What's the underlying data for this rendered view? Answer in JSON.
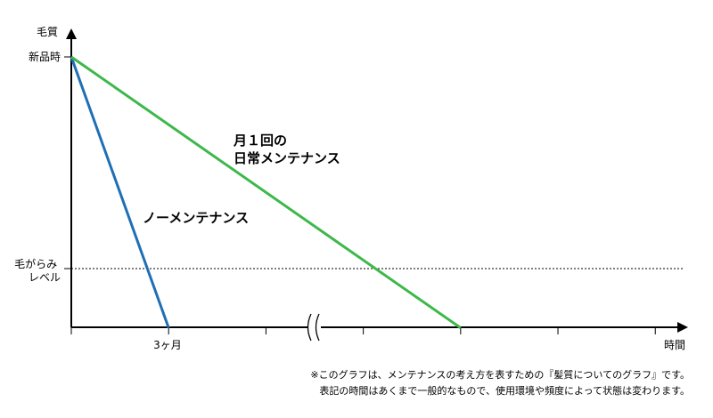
{
  "chart_data": {
    "type": "line",
    "title": "",
    "ylabel": "毛質",
    "xlabel": "時間",
    "y_ticks": [
      {
        "value": 100,
        "label": "新品時"
      },
      {
        "value": 0,
        "label": "毛がらみ\nレベル"
      }
    ],
    "x_ticks": [
      {
        "value": 1,
        "label": "3ヶ月"
      }
    ],
    "axis_break": true,
    "threshold_line": {
      "value": 0,
      "style": "dotted"
    },
    "series": [
      {
        "name": "ノーメンテナンス",
        "color": "#1f6fb5",
        "points": [
          {
            "x": 0,
            "y": 100
          },
          {
            "x": 1,
            "y": -28
          }
        ]
      },
      {
        "name": "月１回の\n日常メンテナンス",
        "color": "#3db84a",
        "points": [
          {
            "x": 0,
            "y": 100
          },
          {
            "x": 4,
            "y": -28
          }
        ]
      }
    ],
    "xlim": [
      0,
      6.3
    ],
    "ylim": [
      -28,
      100
    ],
    "grid": false,
    "legend": "inline labels"
  },
  "notes": [
    "※このグラフは、メンテナンスの考え方を表すための『髪質についてのグラフ』です。",
    "表記の時間はあくまで一般的なもので、使用環境や頻度によって状態は変わります。"
  ]
}
